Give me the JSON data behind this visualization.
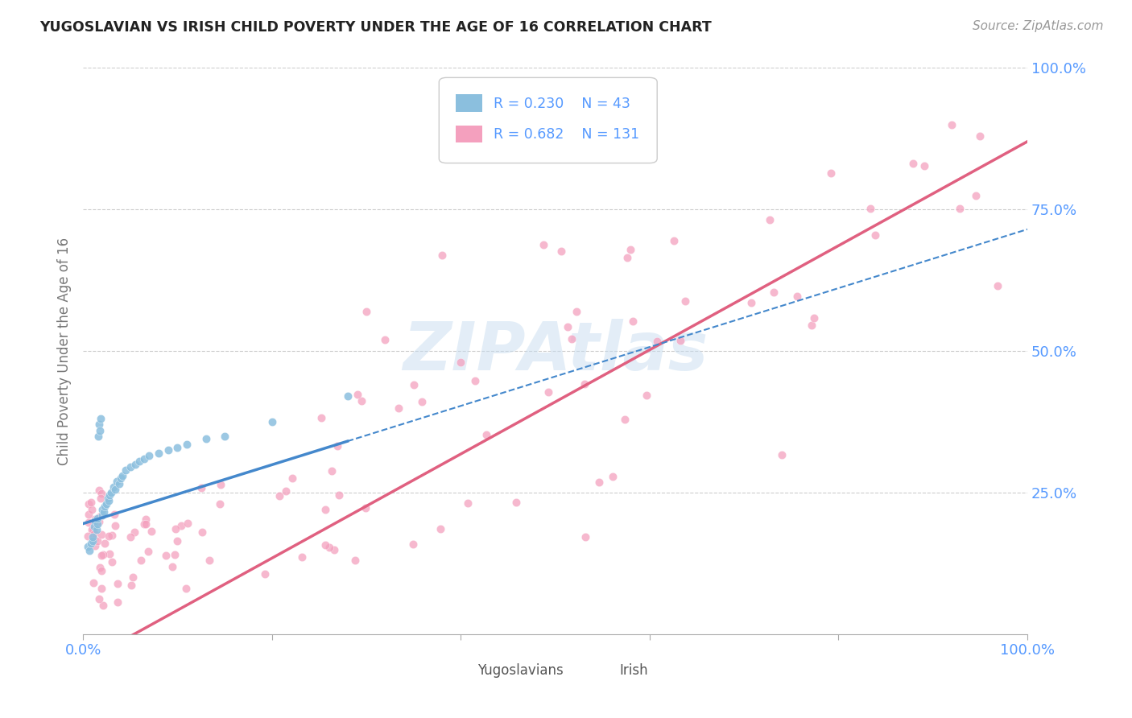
{
  "title": "YUGOSLAVIAN VS IRISH CHILD POVERTY UNDER THE AGE OF 16 CORRELATION CHART",
  "source": "Source: ZipAtlas.com",
  "ylabel": "Child Poverty Under the Age of 16",
  "xlim": [
    0.0,
    1.0
  ],
  "ylim": [
    0.0,
    1.0
  ],
  "x_tick_labels": [
    "0.0%",
    "100.0%"
  ],
  "y_tick_labels": [
    "25.0%",
    "50.0%",
    "75.0%",
    "100.0%"
  ],
  "y_tick_positions": [
    0.25,
    0.5,
    0.75,
    1.0
  ],
  "legend_r1": "R = 0.230",
  "legend_n1": "N = 43",
  "legend_r2": "R = 0.682",
  "legend_n2": "N = 131",
  "legend_label1": "Yugoslavians",
  "legend_label2": "Irish",
  "color_yug": "#8bbfde",
  "color_irish": "#f4a0be",
  "color_yug_line": "#4488cc",
  "color_irish_line": "#e06080",
  "color_axis_labels": "#5599ff",
  "color_legend_text": "#5599ff",
  "color_ylabel": "#777777",
  "watermark_color": "#c8ddf0",
  "watermark_text": "ZIPAtlas"
}
